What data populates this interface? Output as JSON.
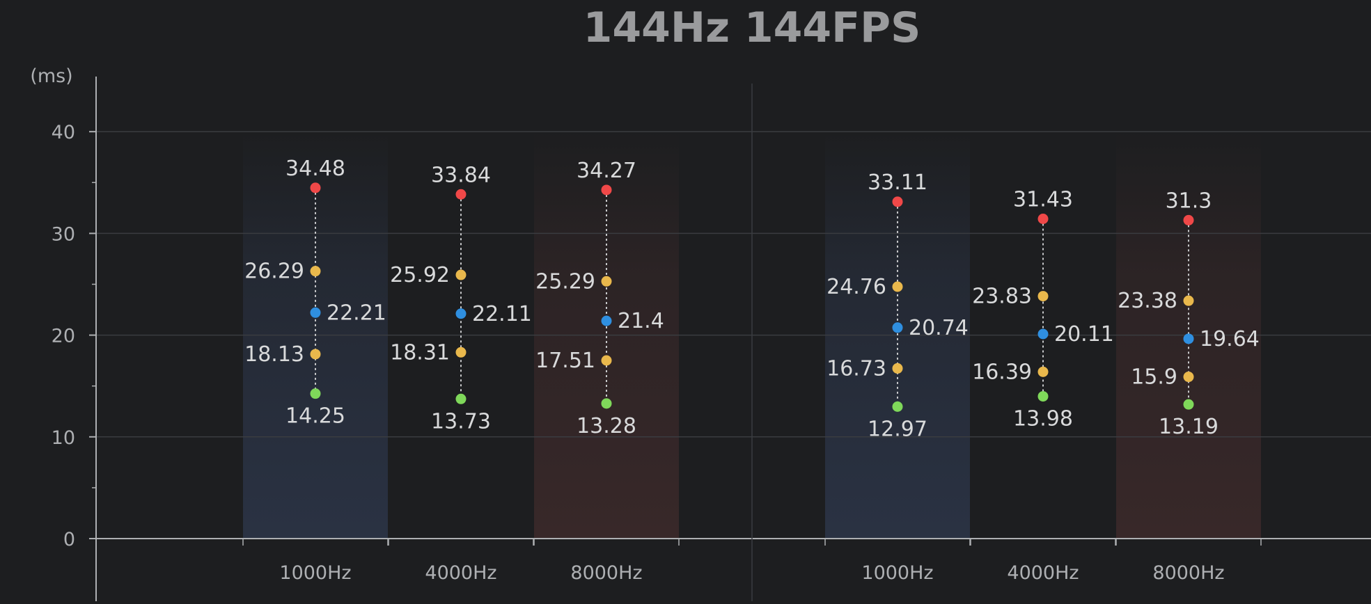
{
  "chart_data": {
    "type": "scatter",
    "title": "144Hz 144FPS",
    "ylabel": "(ms)",
    "ylim": [
      0,
      45
    ],
    "yticks": [
      0,
      10,
      20,
      30,
      40
    ],
    "grid": true,
    "categories": [
      "1000Hz",
      "4000Hz",
      "8000Hz",
      "1000Hz",
      "4000Hz",
      "8000Hz"
    ],
    "groups": [
      {
        "categories": [
          0,
          1,
          2
        ]
      },
      {
        "categories": [
          3,
          4,
          5
        ]
      }
    ],
    "category_backgrounds": [
      "#2a3243",
      "#1d1e20",
      "#382829",
      "#2a3243",
      "#1d1e20",
      "#382829"
    ],
    "series": [
      {
        "role": "max",
        "color": "#f04848",
        "values": [
          34.48,
          33.84,
          34.27,
          33.11,
          31.43,
          31.3
        ]
      },
      {
        "role": "upper",
        "color": "#e9b84c",
        "values": [
          26.29,
          25.92,
          25.29,
          24.76,
          23.83,
          23.38
        ]
      },
      {
        "role": "mean",
        "color": "#2f8fe0",
        "values": [
          22.21,
          22.11,
          21.4,
          20.74,
          20.11,
          19.64
        ]
      },
      {
        "role": "lower",
        "color": "#e9b84c",
        "values": [
          18.13,
          18.31,
          17.51,
          16.73,
          16.39,
          15.9
        ]
      },
      {
        "role": "min",
        "color": "#7fd85a",
        "values": [
          14.25,
          13.73,
          13.28,
          12.97,
          13.98,
          13.19
        ]
      }
    ],
    "labels": {
      "max": [
        "34.48",
        "33.84",
        "34.27",
        "33.11",
        "31.43",
        "31.3"
      ],
      "upper": [
        "26.29",
        "25.92",
        "25.29",
        "24.76",
        "23.83",
        "23.38"
      ],
      "mean": [
        "22.21",
        "22.11",
        "21.4",
        "20.74",
        "20.11",
        "19.64"
      ],
      "lower": [
        "18.13",
        "18.31",
        "17.51",
        "16.73",
        "16.39",
        "15.9"
      ],
      "min": [
        "14.25",
        "13.73",
        "13.28",
        "12.97",
        "13.98",
        "13.19"
      ]
    },
    "colors": {
      "background": "#1d1e20",
      "title": "#9a9b9d",
      "text": "#d9dadb",
      "axis": "#aeb0b3",
      "grid": "#3a3c40"
    }
  }
}
